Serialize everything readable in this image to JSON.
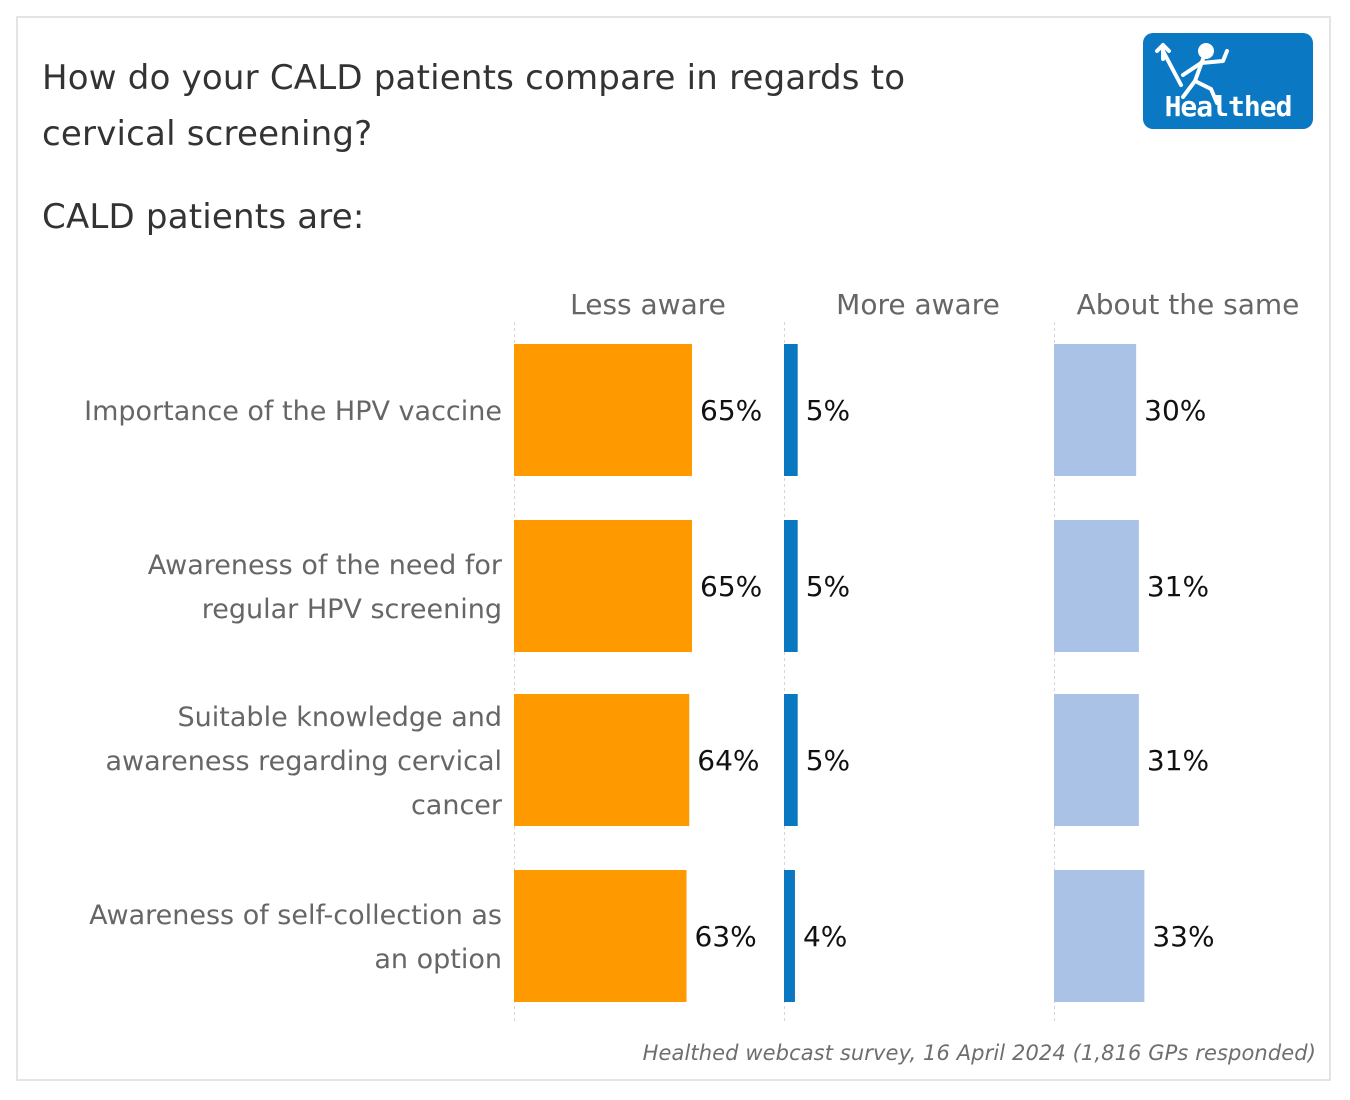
{
  "header": {
    "title": "How do your CALD patients compare in regards to cervical screening?",
    "subtitle": "CALD patients are:"
  },
  "logo": {
    "text": "Healthed",
    "icon": "running-figure-icon",
    "color": "#0b78c4"
  },
  "footnote": "Healthed webcast survey, 16 April 2024 (1,816 GPs responded)",
  "chart_data": {
    "type": "bar",
    "orientation": "horizontal",
    "layout": "small-multiples",
    "title": "How do your CALD patients compare in regards to cervical screening?",
    "subtitle": "CALD patients are:",
    "categories": [
      "Importance of the HPV vaccine",
      "Awareness of the need for regular HPV screening",
      "Suitable knowledge and awareness regarding cervical cancer",
      "Awareness of self-collection as an option"
    ],
    "category_lines": [
      [
        "Importance of the HPV vaccine"
      ],
      [
        "Awareness of the need for",
        "regular HPV screening"
      ],
      [
        "Suitable knowledge and",
        "awareness regarding cervical",
        "cancer"
      ],
      [
        "Awareness of self-collection as",
        "an option"
      ]
    ],
    "series": [
      {
        "name": "Less aware",
        "color": "#ff9900",
        "values": [
          65,
          65,
          64,
          63
        ],
        "labels": [
          "65%",
          "65%",
          "64%",
          "63%"
        ]
      },
      {
        "name": "More aware",
        "color": "#0a78c0",
        "values": [
          5,
          5,
          5,
          4
        ],
        "labels": [
          "5%",
          "5%",
          "5%",
          "4%"
        ]
      },
      {
        "name": "About the same",
        "color": "#a9c2e6",
        "values": [
          30,
          31,
          31,
          33
        ],
        "labels": [
          "30%",
          "31%",
          "31%",
          "33%"
        ]
      }
    ],
    "xlabel": "",
    "ylabel": "",
    "unit": "%",
    "xlim": [
      0,
      100
    ],
    "grid": false,
    "legend": "column-headers-top",
    "source": "Healthed webcast survey, 16 April 2024 (1,816 GPs responded)"
  }
}
